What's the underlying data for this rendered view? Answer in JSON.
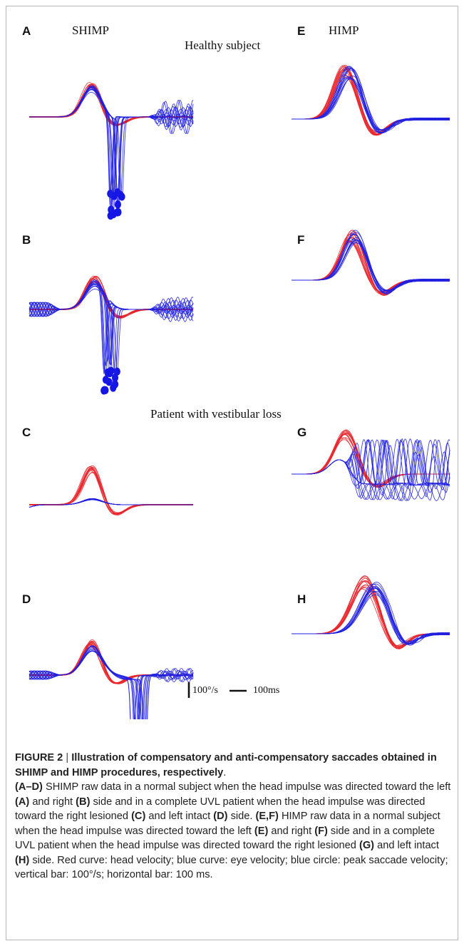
{
  "column_labels": {
    "left": "SHIMP",
    "right": "HIMP"
  },
  "group_labels": {
    "top": "Healthy subject",
    "bottom": "Patient with vestibular loss"
  },
  "panels": [
    {
      "letter": "A",
      "procedure": "SHIMP",
      "subject": "Healthy subject"
    },
    {
      "letter": "B",
      "procedure": "SHIMP",
      "subject": "Healthy subject"
    },
    {
      "letter": "C",
      "procedure": "SHIMP",
      "subject": "Patient with vestibular loss"
    },
    {
      "letter": "D",
      "procedure": "SHIMP",
      "subject": "Patient with vestibular loss"
    },
    {
      "letter": "E",
      "procedure": "HIMP",
      "subject": "Healthy subject"
    },
    {
      "letter": "F",
      "procedure": "HIMP",
      "subject": "Healthy subject"
    },
    {
      "letter": "G",
      "procedure": "HIMP",
      "subject": "Patient with vestibular loss"
    },
    {
      "letter": "H",
      "procedure": "HIMP",
      "subject": "Patient with vestibular loss"
    }
  ],
  "scale_bars": {
    "vertical": "100°/s",
    "horizontal": "100ms"
  },
  "colors": {
    "head_velocity": "#e8262b",
    "eye_velocity": "#2020e0",
    "peak_marker": "#1515e6"
  },
  "caption": {
    "label": "FIGURE 2",
    "separator": " | ",
    "title": "Illustration of compensatory and anti-compensatory saccades obtained in SHIMP and HIMP procedures, respectively",
    "title_end": ".",
    "segments": [
      {
        "t": "(A–D)",
        "b": true
      },
      {
        "t": " SHIMP raw data in a normal subject when the head impulse was directed toward the left ",
        "b": false
      },
      {
        "t": "(A)",
        "b": true
      },
      {
        "t": " and right ",
        "b": false
      },
      {
        "t": "(B)",
        "b": true
      },
      {
        "t": " side and in a complete UVL patient when the head impulse was directed toward the right lesioned ",
        "b": false
      },
      {
        "t": "(C)",
        "b": true
      },
      {
        "t": " and left intact ",
        "b": false
      },
      {
        "t": "(D)",
        "b": true
      },
      {
        "t": " side. ",
        "b": false
      },
      {
        "t": "(E,F)",
        "b": true
      },
      {
        "t": " HIMP raw data in a normal subject when the head impulse was directed toward the left ",
        "b": false
      },
      {
        "t": "(E)",
        "b": true
      },
      {
        "t": " and right ",
        "b": false
      },
      {
        "t": "(F)",
        "b": true
      },
      {
        "t": " side and in a complete UVL patient when the head impulse was directed toward the right lesioned ",
        "b": false
      },
      {
        "t": "(G)",
        "b": true
      },
      {
        "t": " and left intact ",
        "b": false
      },
      {
        "t": "(H)",
        "b": true
      },
      {
        "t": " side. Red curve: head velocity; blue curve: eye velocity; blue circle: peak saccade velocity; vertical bar: 100°/s; horizontal bar: 100 ms.",
        "b": false
      }
    ]
  }
}
